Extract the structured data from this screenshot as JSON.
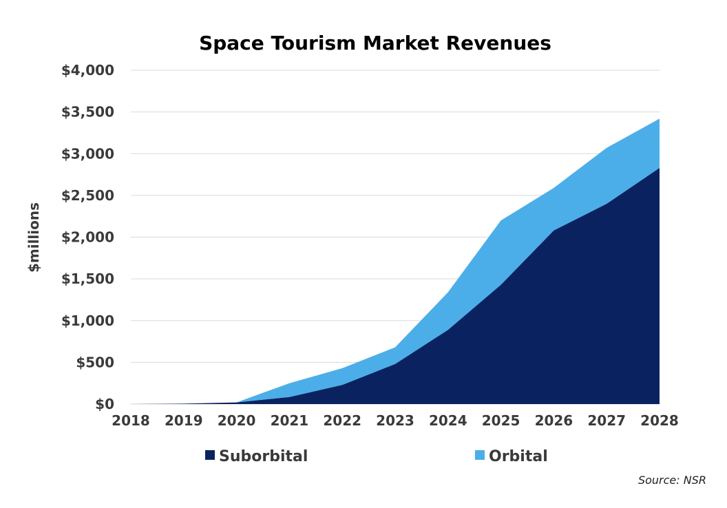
{
  "chart_data": {
    "type": "area",
    "stacked": true,
    "title": "Space Tourism Market Revenues",
    "ylabel": "$millions",
    "xlabel": "",
    "x": [
      "2018",
      "2019",
      "2020",
      "2021",
      "2022",
      "2023",
      "2024",
      "2025",
      "2026",
      "2027",
      "2028"
    ],
    "ylim": [
      0,
      4000
    ],
    "yticks": [
      0,
      500,
      1000,
      1500,
      2000,
      2500,
      3000,
      3500,
      4000
    ],
    "ytick_labels": [
      "$0",
      "$500",
      "$1,000",
      "$1,500",
      "$2,000",
      "$2,500",
      "$3,000",
      "$3,500",
      "$4,000"
    ],
    "grid": true,
    "legend_position": "bottom",
    "series": [
      {
        "name": "Suborbital",
        "color": "#0a2360",
        "values": [
          0,
          5,
          20,
          85,
          230,
          480,
          890,
          1430,
          2080,
          2400,
          2830
        ]
      },
      {
        "name": "Orbital",
        "color": "#4baee8",
        "values": [
          0,
          0,
          0,
          165,
          200,
          200,
          450,
          770,
          510,
          670,
          590
        ]
      }
    ],
    "source": "Source: NSR"
  }
}
